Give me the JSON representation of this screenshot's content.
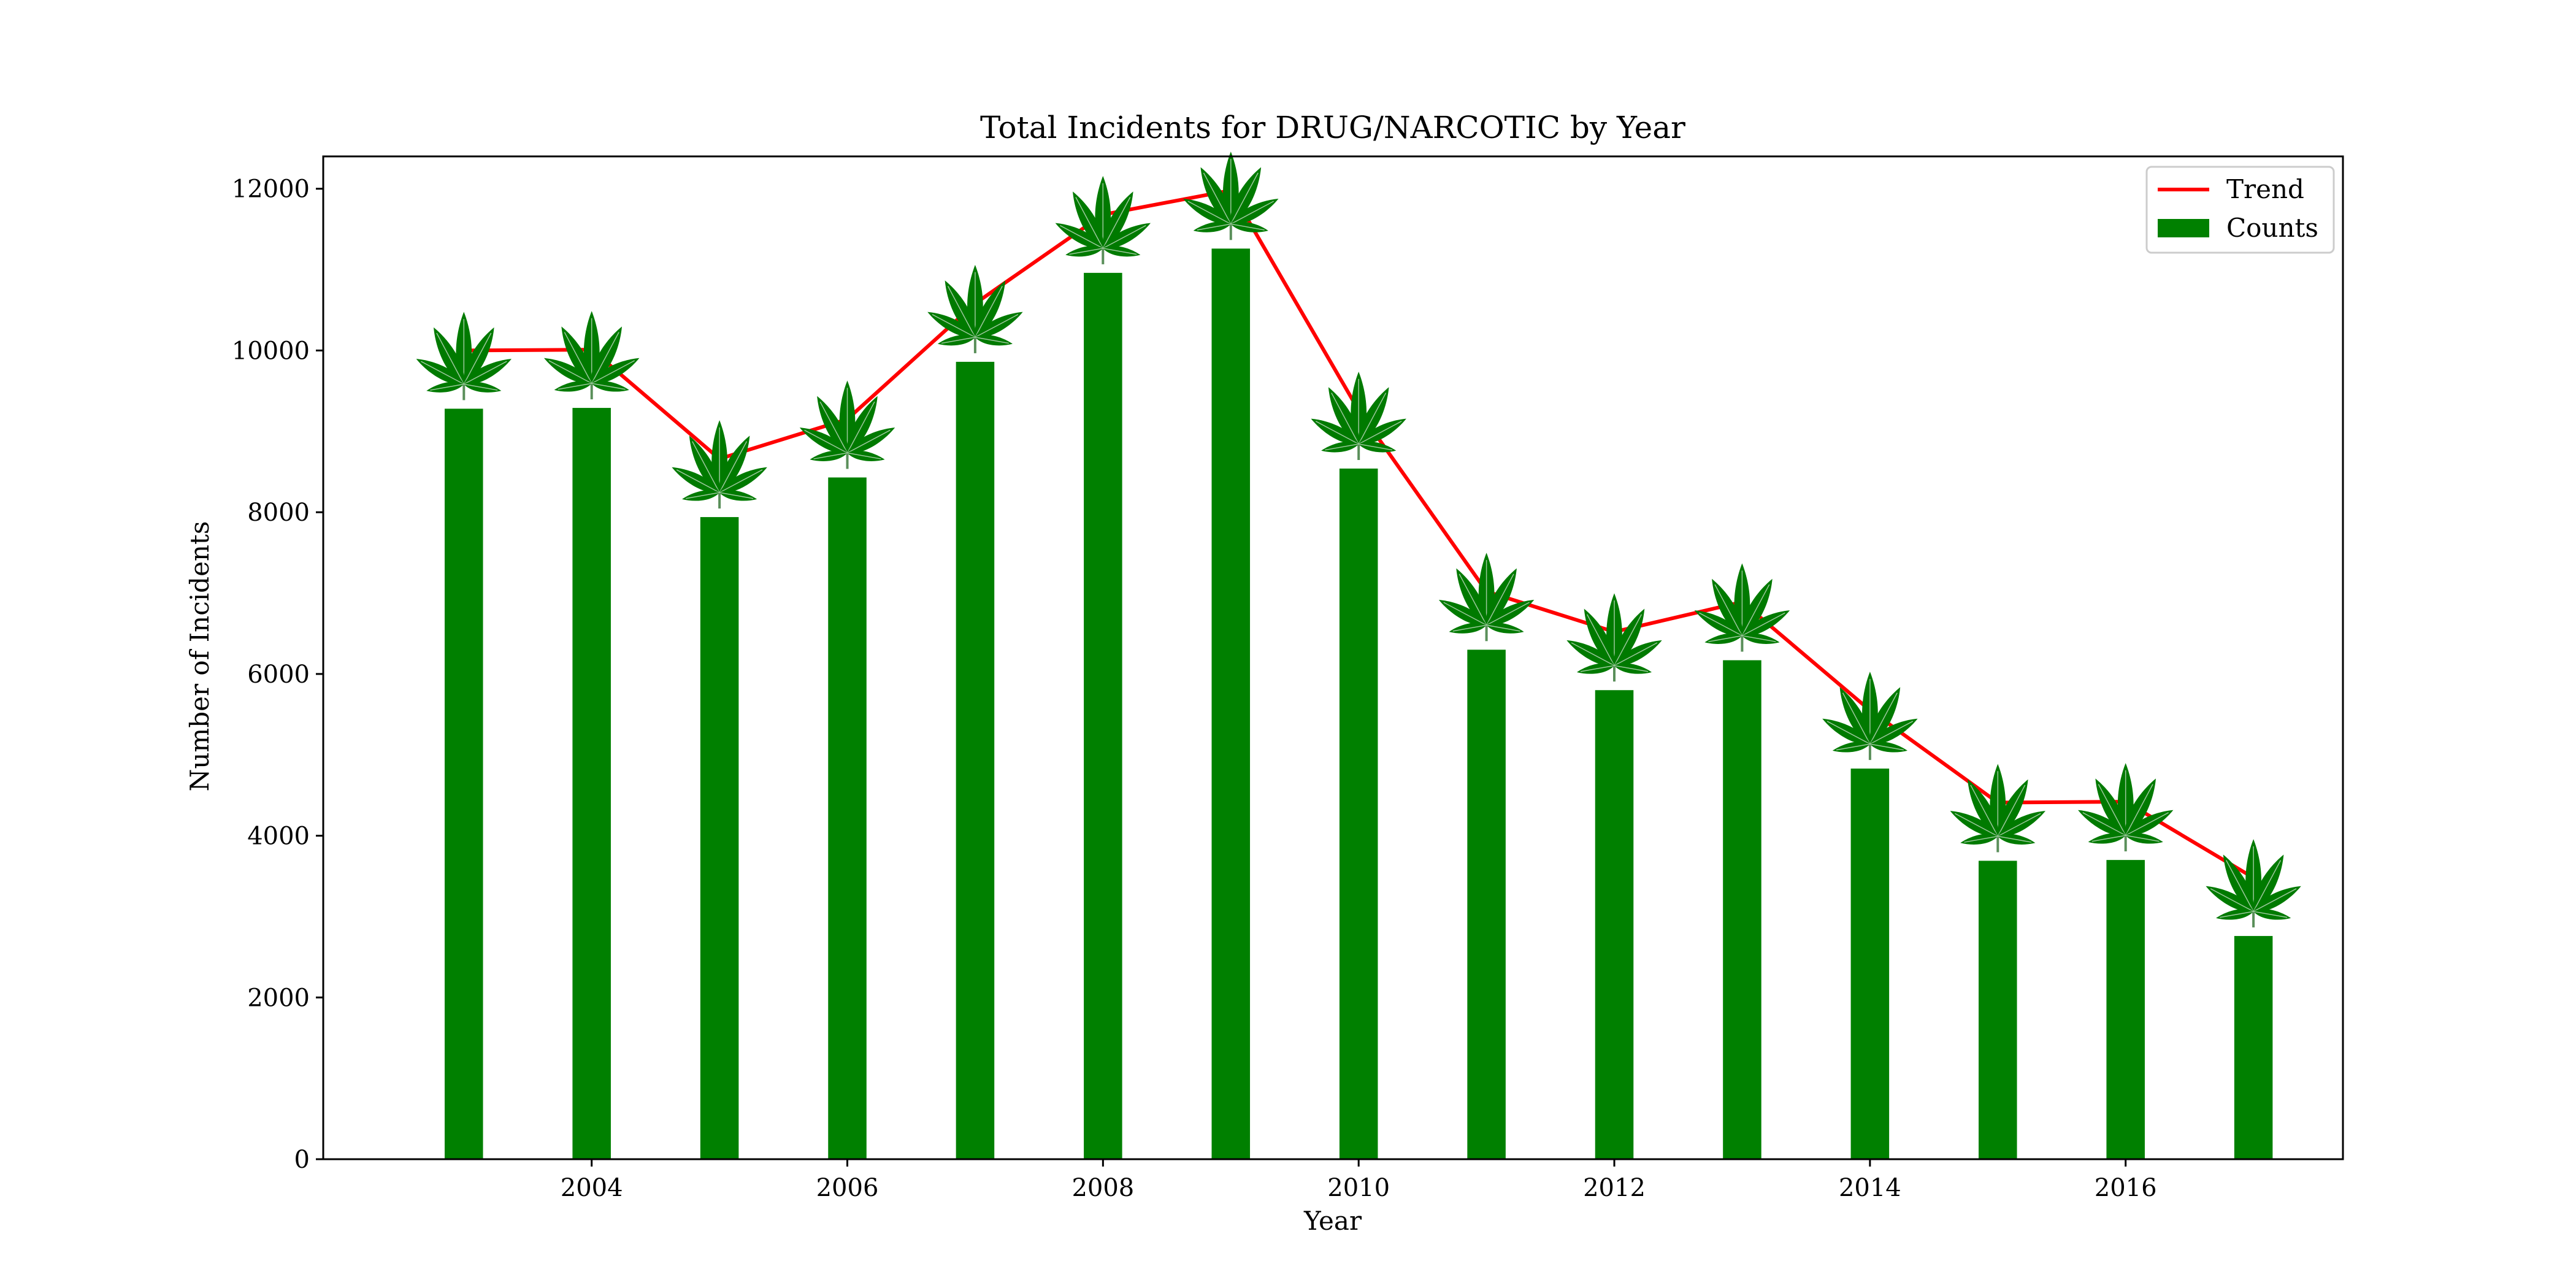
{
  "chart_data": {
    "type": "bar",
    "title": "Total Incidents for DRUG/NARCOTIC by Year",
    "xlabel": "Year",
    "ylabel": "Number of Incidents",
    "x": [
      2003,
      2004,
      2005,
      2006,
      2007,
      2008,
      2009,
      2010,
      2011,
      2012,
      2013,
      2014,
      2015,
      2016,
      2017
    ],
    "values": [
      9280,
      9290,
      7940,
      8430,
      9860,
      10960,
      11260,
      8540,
      6300,
      5800,
      6170,
      4830,
      3690,
      3700,
      2760
    ],
    "xlim": [
      2001.9,
      2017.7
    ],
    "ylim": [
      0,
      12400
    ],
    "xticks": [
      2004,
      2006,
      2008,
      2010,
      2012,
      2014,
      2016
    ],
    "yticks": [
      0,
      2000,
      4000,
      6000,
      8000,
      10000,
      12000
    ],
    "series": [
      {
        "name": "Trend",
        "kind": "line",
        "color": "#ff0000"
      },
      {
        "name": "Counts",
        "kind": "bar",
        "color": "#008000"
      }
    ],
    "marker_icon": "cannabis-leaf-icon",
    "marker_color": "#007a00",
    "legend_position": "top-right",
    "grid": false
  }
}
